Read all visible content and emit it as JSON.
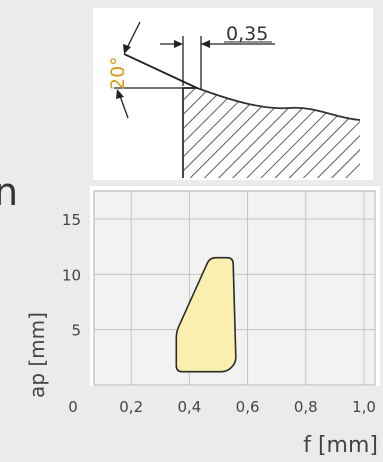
{
  "left_partial_char": "n",
  "diagram": {
    "angle_label": "20°",
    "edge_label": "0,35"
  },
  "chart_data": {
    "type": "area",
    "xlabel": "f [mm]",
    "ylabel": "ap [mm]",
    "xlim": [
      0,
      1.0
    ],
    "ylim": [
      0,
      17
    ],
    "x_ticks": [
      {
        "value": 0,
        "label": "0"
      },
      {
        "value": 0.2,
        "label": "0,2"
      },
      {
        "value": 0.4,
        "label": "0,4"
      },
      {
        "value": 0.6,
        "label": "0,6"
      },
      {
        "value": 0.8,
        "label": "0,8"
      },
      {
        "value": 1.0,
        "label": "1,0"
      }
    ],
    "y_ticks": [
      {
        "value": 5,
        "label": "5"
      },
      {
        "value": 10,
        "label": "10"
      },
      {
        "value": 15,
        "label": "15"
      }
    ],
    "grid": true,
    "series": [
      {
        "polygon": [
          [
            0.355,
            1.2
          ],
          [
            0.355,
            4.8
          ],
          [
            0.47,
            11.5
          ],
          [
            0.55,
            11.5
          ],
          [
            0.56,
            2.0
          ],
          [
            0.53,
            1.2
          ]
        ],
        "color": "#fbefb0",
        "stroke": "#2b2b2b"
      }
    ]
  }
}
